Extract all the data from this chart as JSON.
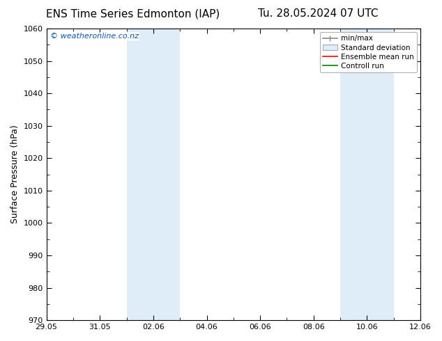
{
  "title_left": "ENS Time Series Edmonton (IAP)",
  "title_right": "Tu. 28.05.2024 07 UTC",
  "ylabel": "Surface Pressure (hPa)",
  "ylim": [
    970,
    1060
  ],
  "yticks": [
    970,
    980,
    990,
    1000,
    1010,
    1020,
    1030,
    1040,
    1050,
    1060
  ],
  "xtick_labels": [
    "29.05",
    "31.05",
    "02.06",
    "04.06",
    "06.06",
    "08.06",
    "10.06",
    "12.06"
  ],
  "xtick_positions": [
    0,
    2,
    4,
    6,
    8,
    10,
    12,
    14
  ],
  "xlim": [
    0,
    14
  ],
  "shaded_regions": [
    {
      "x_start": 3.0,
      "x_end": 5.0,
      "color": "#deedf7"
    },
    {
      "x_start": 11.0,
      "x_end": 13.0,
      "color": "#deedf7"
    }
  ],
  "watermark": "© weatheronline.co.nz",
  "legend_items": [
    {
      "label": "min/max",
      "color": "#aaaaaa",
      "style": "line_with_caps"
    },
    {
      "label": "Standard deviation",
      "color": "#cccccc",
      "style": "filled_bar"
    },
    {
      "label": "Ensemble mean run",
      "color": "red",
      "style": "line"
    },
    {
      "label": "Controll run",
      "color": "green",
      "style": "line"
    }
  ],
  "background_color": "#ffffff",
  "plot_bg_color": "#ffffff",
  "title_fontsize": 11,
  "tick_fontsize": 8,
  "ylabel_fontsize": 9,
  "watermark_color": "#1155aa",
  "watermark_fontsize": 8
}
